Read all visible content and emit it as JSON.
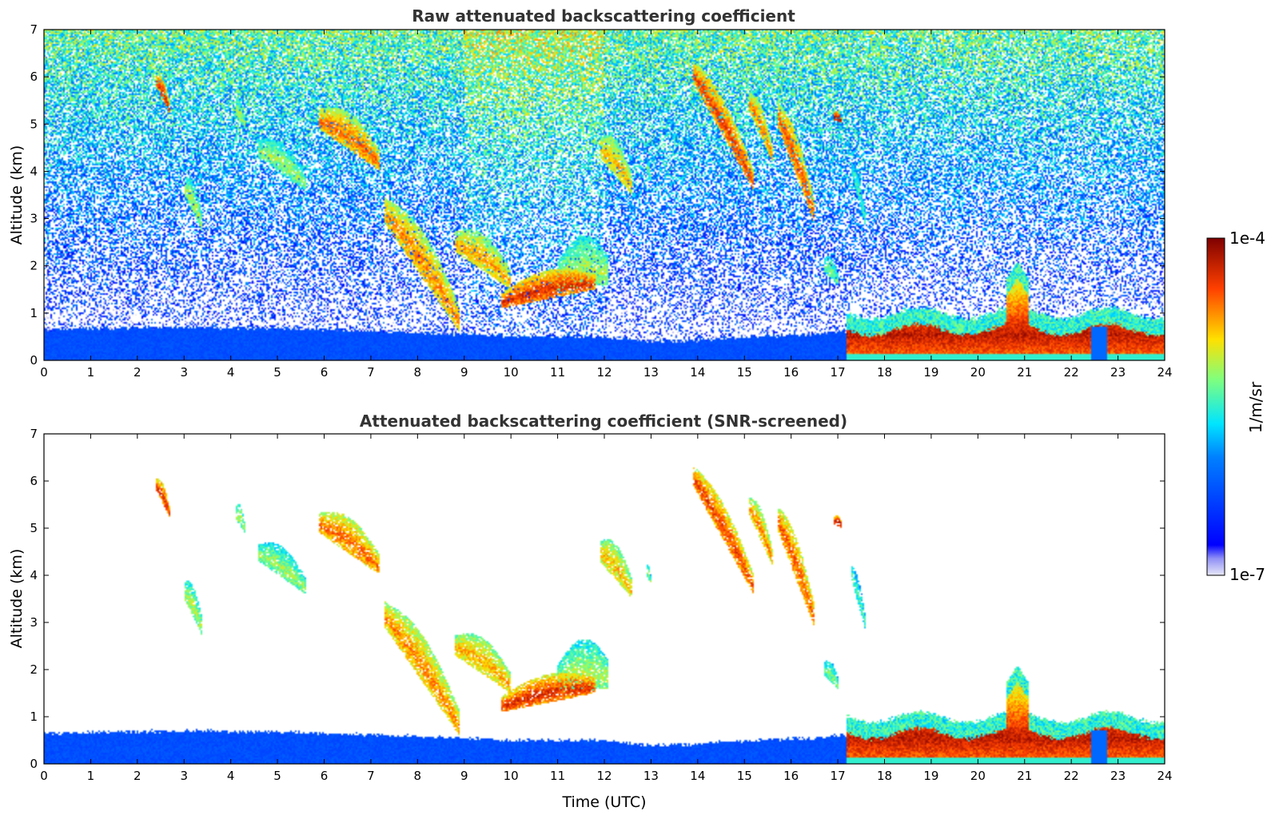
{
  "chart_data": [
    {
      "type": "heatmap",
      "title": "Raw attenuated backscattering coefficient",
      "xlabel": "",
      "ylabel": "Altitude (km)",
      "xlim": [
        0,
        24
      ],
      "ylim": [
        0,
        7
      ],
      "x_ticks": [
        "0",
        "1",
        "2",
        "3",
        "4",
        "5",
        "6",
        "7",
        "8",
        "9",
        "10",
        "11",
        "12",
        "13",
        "14",
        "15",
        "16",
        "17",
        "18",
        "19",
        "20",
        "21",
        "22",
        "23",
        "24"
      ],
      "y_ticks": [
        "0",
        "1",
        "2",
        "3",
        "4",
        "5",
        "6",
        "7"
      ],
      "screened": false
    },
    {
      "type": "heatmap",
      "title": "Attenuated backscattering coefficient (SNR-screened)",
      "xlabel": "Time (UTC)",
      "ylabel": "Altitude (km)",
      "xlim": [
        0,
        24
      ],
      "ylim": [
        0,
        7
      ],
      "x_ticks": [
        "0",
        "1",
        "2",
        "3",
        "4",
        "5",
        "6",
        "7",
        "8",
        "9",
        "10",
        "11",
        "12",
        "13",
        "14",
        "15",
        "16",
        "17",
        "18",
        "19",
        "20",
        "21",
        "22",
        "23",
        "24"
      ],
      "y_ticks": [
        "0",
        "1",
        "2",
        "3",
        "4",
        "5",
        "6",
        "7"
      ],
      "screened": true
    }
  ],
  "features": {
    "boundary_layer": [
      [
        0,
        0.65
      ],
      [
        3,
        0.7
      ],
      [
        5,
        0.68
      ],
      [
        7,
        0.62
      ],
      [
        9,
        0.55
      ],
      [
        10,
        0.5
      ],
      [
        12,
        0.5
      ],
      [
        13,
        0.4
      ],
      [
        14,
        0.42
      ],
      [
        15,
        0.5
      ],
      [
        16.5,
        0.55
      ],
      [
        17,
        0.6
      ]
    ],
    "clouds": [
      {
        "t0": 7.3,
        "t1": 8.9,
        "b0": 2.9,
        "b1": 0.6,
        "d": 0.9,
        "v": 0.75
      },
      {
        "t0": 8.8,
        "t1": 10.0,
        "b0": 2.3,
        "b1": 1.5,
        "d": 0.7,
        "v": 0.72
      },
      {
        "t0": 9.8,
        "t1": 11.8,
        "b0": 1.1,
        "b1": 1.5,
        "d": 0.55,
        "v": 0.85
      },
      {
        "t0": 11.0,
        "t1": 12.1,
        "b0": 1.5,
        "b1": 1.6,
        "d": 1.0,
        "v": 0.6
      },
      {
        "t0": 5.9,
        "t1": 7.2,
        "b0": 4.9,
        "b1": 4.0,
        "d": 0.7,
        "v": 0.78
      },
      {
        "t0": 4.6,
        "t1": 5.6,
        "b0": 4.3,
        "b1": 3.6,
        "d": 0.6,
        "v": 0.58
      },
      {
        "t0": 3.0,
        "t1": 3.4,
        "b0": 3.5,
        "b1": 2.7,
        "d": 0.6,
        "v": 0.6
      },
      {
        "t0": 2.4,
        "t1": 2.7,
        "b0": 5.8,
        "b1": 5.2,
        "d": 0.4,
        "v": 0.85
      },
      {
        "t0": 4.1,
        "t1": 4.3,
        "b0": 5.2,
        "b1": 4.9,
        "d": 0.4,
        "v": 0.6
      },
      {
        "t0": 11.9,
        "t1": 12.6,
        "b0": 4.3,
        "b1": 3.5,
        "d": 0.7,
        "v": 0.7
      },
      {
        "t0": 12.9,
        "t1": 13.0,
        "b0": 4.0,
        "b1": 3.8,
        "d": 0.3,
        "v": 0.55
      },
      {
        "t0": 13.9,
        "t1": 15.2,
        "b0": 5.9,
        "b1": 3.6,
        "d": 0.7,
        "v": 0.82
      },
      {
        "t0": 15.1,
        "t1": 15.6,
        "b0": 5.3,
        "b1": 4.2,
        "d": 0.6,
        "v": 0.75
      },
      {
        "t0": 15.7,
        "t1": 16.5,
        "b0": 5.0,
        "b1": 2.9,
        "d": 0.8,
        "v": 0.8
      },
      {
        "t0": 16.7,
        "t1": 17.0,
        "b0": 1.9,
        "b1": 1.6,
        "d": 0.4,
        "v": 0.55
      },
      {
        "t0": 17.3,
        "t1": 17.6,
        "b0": 3.9,
        "b1": 2.8,
        "d": 0.5,
        "v": 0.5
      },
      {
        "t0": 16.9,
        "t1": 17.1,
        "b0": 5.1,
        "b1": 5.0,
        "d": 0.2,
        "v": 0.9
      }
    ],
    "night_layer": {
      "t0": 17.2,
      "t1": 24,
      "base": 0.0,
      "top": 1.0,
      "v": 0.93
    },
    "rain_column": {
      "t": 22.6,
      "w": 0.35
    },
    "upper_layer": {
      "t0": 20.6,
      "t1": 21.1,
      "top": 2.1
    }
  },
  "colorbar": {
    "label": "1/m/sr",
    "max_label": "1e-4",
    "min_label": "1e-7",
    "colormap": "jet"
  },
  "colors": {
    "background": "#ffffff",
    "axes": "#000000",
    "title": "#333333"
  }
}
